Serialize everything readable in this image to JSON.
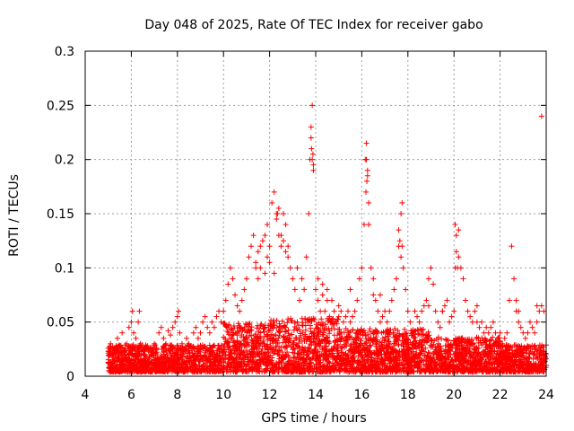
{
  "chart_data": {
    "type": "scatter",
    "title": "Day 048 of 2025, Rate Of TEC Index for receiver gabo",
    "xlabel": "GPS time / hours",
    "ylabel": "ROTI / TECUs",
    "xlim": [
      4,
      24
    ],
    "ylim": [
      0,
      0.3
    ],
    "xticks": [
      4,
      6,
      8,
      10,
      12,
      14,
      16,
      18,
      20,
      22,
      24
    ],
    "yticks": [
      0,
      0.05,
      0.1,
      0.15,
      0.2,
      0.25,
      0.3
    ],
    "xtick_labels": [
      "4",
      "6",
      "8",
      "10",
      "12",
      "14",
      "16",
      "18",
      "20",
      "22",
      "24"
    ],
    "ytick_labels": [
      "0",
      "0.05",
      "0.1",
      "0.15",
      "0.2",
      "0.25",
      "0.3"
    ],
    "grid": true,
    "marker": "plus",
    "color": "#ff0000",
    "series": [
      {
        "x": [
          5.05,
          5.1,
          5.2,
          5.3,
          5.4,
          5.5,
          5.6,
          5.7,
          5.8,
          5.9,
          6.0,
          6.05,
          6.1,
          6.2,
          6.3,
          6.35,
          6.4,
          6.5,
          6.6,
          6.7,
          6.8,
          6.9,
          7.0,
          7.1,
          7.2,
          7.3,
          7.4,
          7.5,
          7.6,
          7.7,
          7.8,
          7.9,
          8.0,
          8.05,
          8.1,
          8.2,
          8.3,
          8.4,
          8.5,
          8.6,
          8.7,
          8.8,
          8.9,
          9.0,
          9.1,
          9.2,
          9.3,
          9.4,
          9.5,
          9.6,
          9.7,
          9.8,
          9.9,
          10.0,
          10.1,
          10.2,
          10.3,
          10.4,
          10.5,
          10.6,
          10.7,
          10.8,
          10.9,
          11.0,
          11.1,
          11.2,
          11.3,
          11.4,
          11.5,
          11.6,
          11.7,
          11.8,
          11.9,
          12.0,
          12.1,
          12.2,
          12.3,
          12.4,
          12.5,
          12.6,
          12.7,
          12.8,
          12.9,
          13.0,
          13.1,
          13.2,
          13.3,
          13.4,
          13.5,
          13.6,
          13.7,
          13.75,
          13.8,
          13.85,
          13.9,
          14.0,
          14.1,
          14.2,
          14.3,
          14.4,
          14.5,
          14.6,
          14.7,
          14.8,
          14.9,
          15.0,
          15.1,
          15.2,
          15.3,
          15.4,
          15.5,
          15.6,
          15.7,
          15.8,
          15.9,
          16.0,
          16.1,
          16.15,
          16.2,
          16.25,
          16.3,
          16.4,
          16.5,
          16.6,
          16.7,
          16.8,
          16.9,
          17.0,
          17.1,
          17.2,
          17.3,
          17.4,
          17.5,
          17.6,
          17.7,
          17.75,
          17.8,
          17.9,
          18.0,
          18.1,
          18.2,
          18.3,
          18.4,
          18.5,
          18.6,
          18.7,
          18.8,
          18.9,
          19.0,
          19.1,
          19.2,
          19.3,
          19.4,
          19.5,
          19.6,
          19.7,
          19.8,
          19.9,
          20.0,
          20.05,
          20.1,
          20.2,
          20.3,
          20.4,
          20.5,
          20.6,
          20.7,
          20.8,
          20.9,
          21.0,
          21.1,
          21.2,
          21.3,
          21.4,
          21.5,
          21.6,
          21.7,
          21.8,
          21.9,
          22.0,
          22.1,
          22.2,
          22.3,
          22.4,
          22.5,
          22.6,
          22.7,
          22.8,
          22.9,
          23.0,
          23.1,
          23.2,
          23.3,
          23.4,
          23.5,
          23.6,
          23.7,
          23.8,
          23.9,
          24.0,
          5.2,
          5.5,
          5.8,
          6.1,
          6.4,
          6.7,
          7.0,
          7.3,
          7.6,
          7.9,
          8.2,
          8.5,
          8.8,
          9.1,
          9.4,
          9.7,
          10.0,
          10.3,
          10.6,
          10.9,
          11.2,
          11.5,
          11.8,
          12.1,
          12.4,
          12.7,
          13.0,
          13.3,
          13.6,
          13.9,
          14.2,
          14.5,
          14.8,
          15.1,
          15.4,
          15.7,
          16.0,
          16.3,
          16.6,
          16.9,
          17.2,
          17.5,
          17.8,
          18.1,
          18.4,
          18.7,
          19.0,
          19.3,
          19.6,
          19.9,
          20.2,
          20.5,
          20.8,
          21.1,
          21.4,
          21.7,
          22.0,
          22.3,
          22.6,
          22.9,
          23.2,
          23.5,
          23.8,
          13.8,
          13.82,
          13.85,
          13.9,
          13.88,
          16.2,
          16.22,
          16.25,
          16.18,
          16.3,
          17.6,
          17.65,
          17.7,
          17.75,
          20.1,
          20.15,
          20.2,
          20.05,
          12.3,
          12.35,
          12.4,
          12.5,
          12.6,
          12.7,
          12.8,
          11.4,
          11.5,
          11.6,
          11.8,
          11.9,
          12.0,
          12.2,
          14.1,
          14.3,
          14.5,
          14.7,
          15.0,
          15.5,
          16.5,
          16.8,
          18.9,
          19.5,
          21.0,
          22.7,
          22.8,
          23.6
        ],
        "y": [
          0.02,
          0.03,
          0.025,
          0.018,
          0.035,
          0.028,
          0.04,
          0.022,
          0.03,
          0.045,
          0.05,
          0.06,
          0.04,
          0.035,
          0.05,
          0.06,
          0.03,
          0.025,
          0.02,
          0.028,
          0.018,
          0.022,
          0.03,
          0.025,
          0.04,
          0.045,
          0.035,
          0.03,
          0.042,
          0.038,
          0.045,
          0.05,
          0.055,
          0.06,
          0.04,
          0.03,
          0.025,
          0.035,
          0.03,
          0.028,
          0.04,
          0.045,
          0.035,
          0.04,
          0.05,
          0.055,
          0.045,
          0.04,
          0.05,
          0.045,
          0.055,
          0.06,
          0.05,
          0.06,
          0.07,
          0.085,
          0.1,
          0.09,
          0.075,
          0.065,
          0.06,
          0.07,
          0.08,
          0.09,
          0.11,
          0.12,
          0.13,
          0.1,
          0.09,
          0.12,
          0.125,
          0.13,
          0.14,
          0.12,
          0.16,
          0.17,
          0.15,
          0.13,
          0.12,
          0.15,
          0.14,
          0.12,
          0.1,
          0.09,
          0.08,
          0.1,
          0.07,
          0.09,
          0.08,
          0.11,
          0.15,
          0.2,
          0.22,
          0.25,
          0.19,
          0.08,
          0.07,
          0.06,
          0.075,
          0.06,
          0.07,
          0.055,
          0.05,
          0.06,
          0.05,
          0.055,
          0.06,
          0.05,
          0.055,
          0.06,
          0.05,
          0.055,
          0.06,
          0.07,
          0.09,
          0.1,
          0.14,
          0.2,
          0.215,
          0.19,
          0.16,
          0.1,
          0.09,
          0.07,
          0.06,
          0.05,
          0.055,
          0.06,
          0.05,
          0.06,
          0.07,
          0.08,
          0.09,
          0.12,
          0.15,
          0.16,
          0.1,
          0.08,
          0.06,
          0.05,
          0.04,
          0.06,
          0.055,
          0.05,
          0.06,
          0.065,
          0.07,
          0.09,
          0.1,
          0.085,
          0.06,
          0.05,
          0.045,
          0.06,
          0.065,
          0.07,
          0.05,
          0.055,
          0.06,
          0.1,
          0.13,
          0.135,
          0.1,
          0.09,
          0.07,
          0.06,
          0.055,
          0.05,
          0.06,
          0.05,
          0.045,
          0.05,
          0.04,
          0.045,
          0.04,
          0.045,
          0.05,
          0.04,
          0.035,
          0.04,
          0.03,
          0.035,
          0.04,
          0.07,
          0.12,
          0.09,
          0.06,
          0.05,
          0.045,
          0.04,
          0.035,
          0.04,
          0.05,
          0.045,
          0.04,
          0.05,
          0.06,
          0.065,
          0.06,
          0.01,
          0.012,
          0.008,
          0.015,
          0.01,
          0.012,
          0.008,
          0.01,
          0.011,
          0.015,
          0.012,
          0.01,
          0.014,
          0.015,
          0.016,
          0.018,
          0.02,
          0.022,
          0.025,
          0.02,
          0.02,
          0.018,
          0.02,
          0.022,
          0.025,
          0.024,
          0.02,
          0.022,
          0.018,
          0.02,
          0.022,
          0.018,
          0.02,
          0.018,
          0.016,
          0.02,
          0.022,
          0.02,
          0.018,
          0.016,
          0.015,
          0.018,
          0.016,
          0.015,
          0.014,
          0.016,
          0.015,
          0.014,
          0.015,
          0.016,
          0.015,
          0.014,
          0.015,
          0.013,
          0.012,
          0.013,
          0.012,
          0.011,
          0.012,
          0.011,
          0.012,
          0.011,
          0.01,
          0.24,
          0.23,
          0.21,
          0.2,
          0.195,
          0.205,
          0.2,
          0.18,
          0.185,
          0.17,
          0.14,
          0.135,
          0.125,
          0.11,
          0.12,
          0.115,
          0.1,
          0.11,
          0.14,
          0.145,
          0.15,
          0.155,
          0.13,
          0.125,
          0.115,
          0.11,
          0.105,
          0.115,
          0.1,
          0.095,
          0.11,
          0.105,
          0.095,
          0.09,
          0.085,
          0.08,
          0.07,
          0.065,
          0.08,
          0.075,
          0.075,
          0.065,
          0.06,
          0.065,
          0.07,
          0.06,
          0.065
        ]
      }
    ]
  }
}
